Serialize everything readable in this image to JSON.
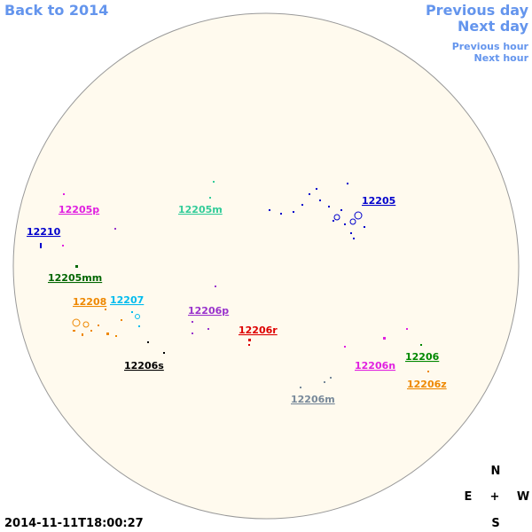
{
  "nav": {
    "back_year": "Back to 2014",
    "previous_day": "Previous day",
    "next_day": "Next day",
    "previous_hour": "Previous hour",
    "next_hour": "Next hour"
  },
  "timestamp": "2014-11-11T18:00:27",
  "compass": {
    "north": "N",
    "east": "E",
    "center": "+",
    "west": "W",
    "south": "S"
  },
  "regions": [
    "12205p",
    "12205m",
    "12205",
    "12210",
    "12205mm",
    "12208",
    "12207",
    "12206p",
    "12206r",
    "12206s",
    "12206n",
    "12206",
    "12206z",
    "12206m"
  ]
}
